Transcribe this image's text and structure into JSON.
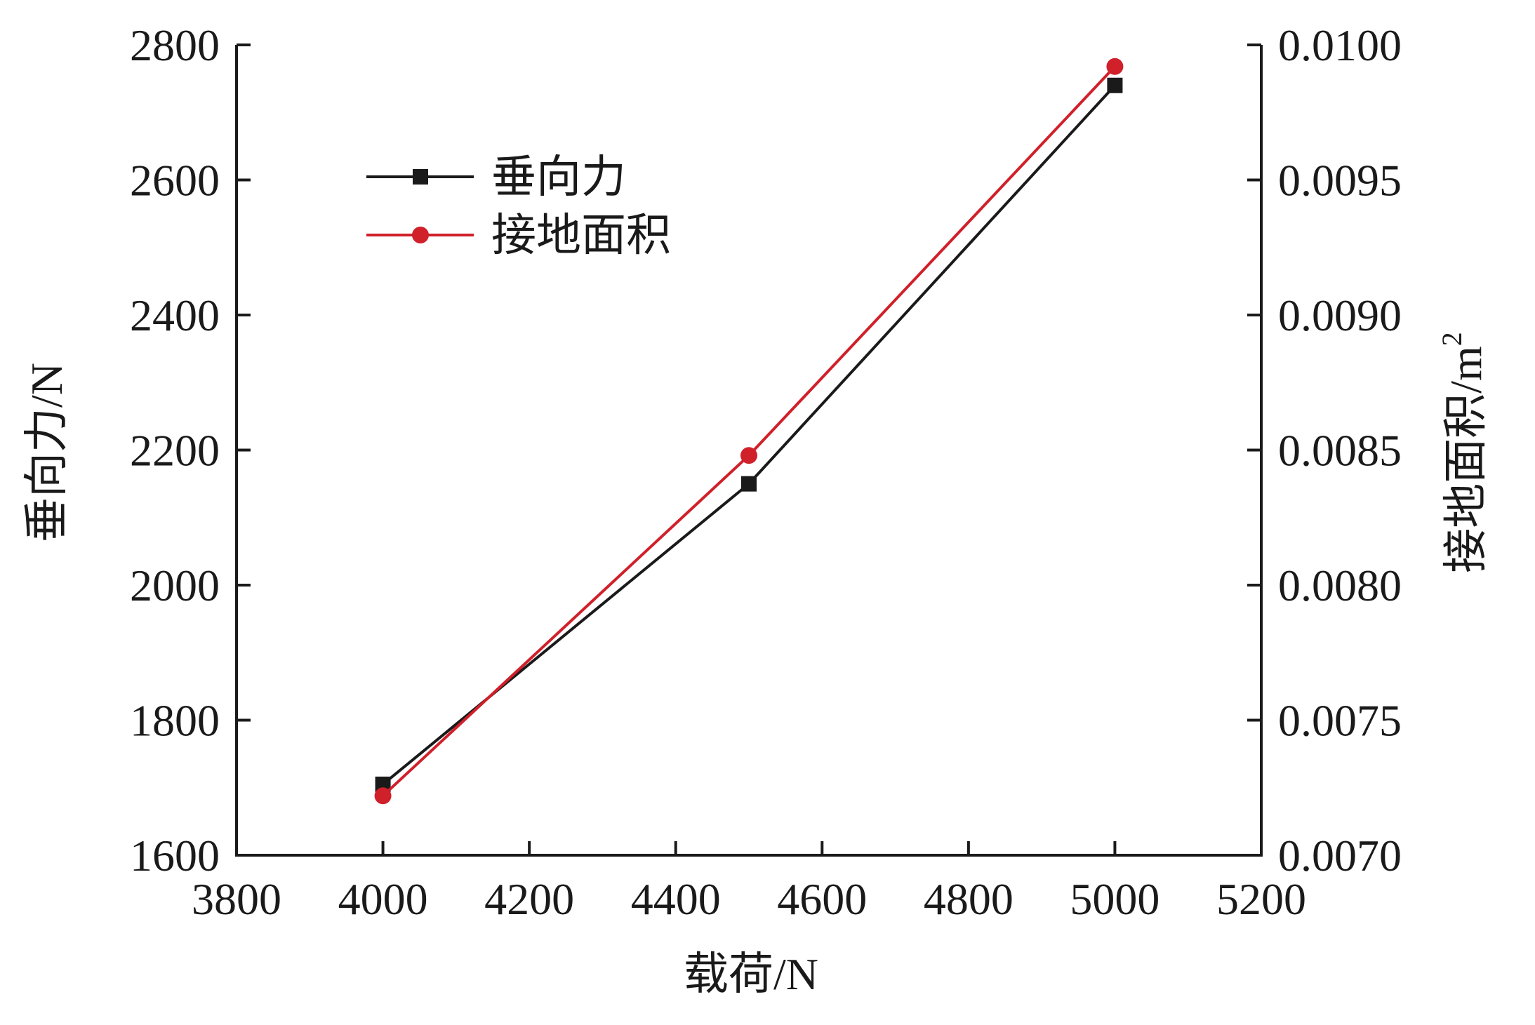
{
  "chart_data": {
    "type": "line",
    "title": "",
    "x": [
      4000,
      4500,
      5000
    ],
    "xlabel": {
      "main": "载荷",
      "unit": "/N"
    },
    "xlim": [
      3800,
      5200
    ],
    "xticks": [
      "3800",
      "4000",
      "4200",
      "4400",
      "4600",
      "4800",
      "5000",
      "5200"
    ],
    "ylabel_left": {
      "main": "垂向力",
      "unit": "/N"
    },
    "ylim_left": [
      1600,
      2800
    ],
    "yticks_left": [
      "1600",
      "1800",
      "2000",
      "2200",
      "2400",
      "2600",
      "2800"
    ],
    "ylabel_right": {
      "main": "接地面积",
      "unit": "/m",
      "sup": "2"
    },
    "ylim_right": [
      0.007,
      0.01
    ],
    "yticks_right": [
      "0.0070",
      "0.0075",
      "0.0080",
      "0.0085",
      "0.0090",
      "0.0095",
      "0.0100"
    ],
    "grid": false,
    "legend_position": "upper-left",
    "series": [
      {
        "name": "垂向力",
        "axis": "left",
        "marker": "square",
        "color": "#1a1a1a",
        "values": [
          1705,
          2150,
          2740
        ]
      },
      {
        "name": "接地面积",
        "axis": "right",
        "marker": "circle",
        "color": "#d0202a",
        "values": [
          0.00722,
          0.00848,
          0.00992
        ]
      }
    ]
  }
}
